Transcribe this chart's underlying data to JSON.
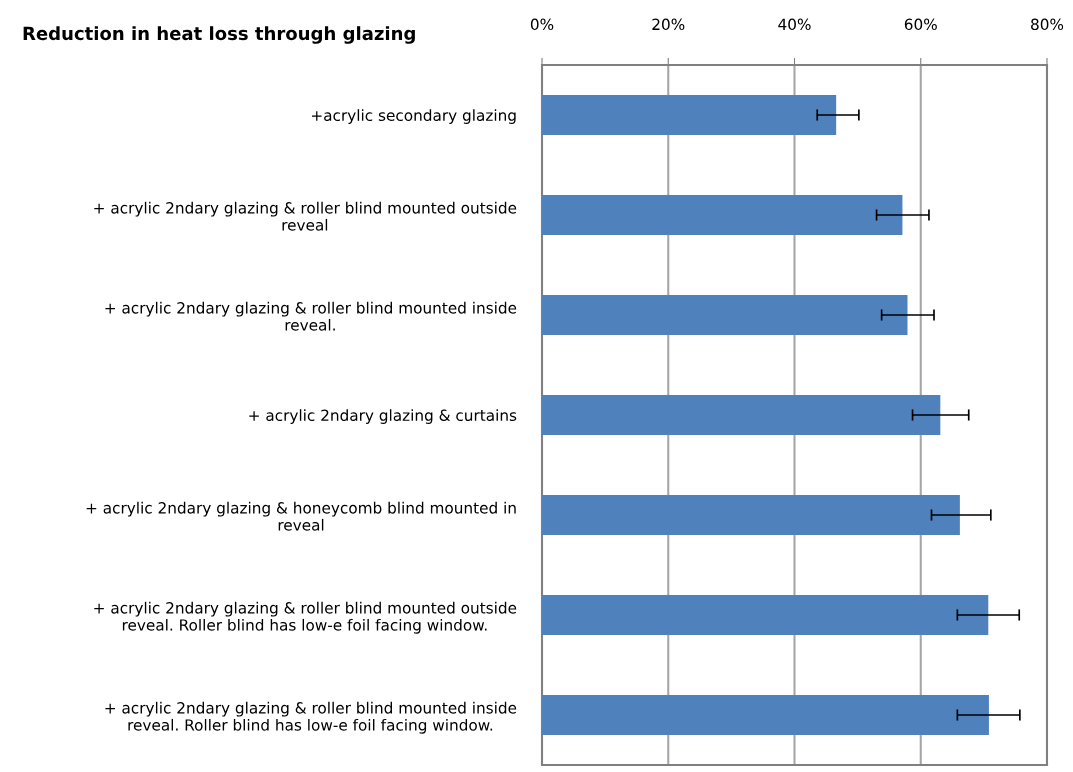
{
  "chart_data": {
    "type": "bar",
    "orientation": "horizontal",
    "title": "Reduction in heat loss through glazing",
    "categories": [
      "+acrylic secondary glazing",
      "+ acrylic 2ndary glazing & roller blind mounted outside\nreveal",
      "+ acrylic 2ndary glazing & roller blind mounted inside\nreveal.",
      "+ acrylic 2ndary glazing & curtains",
      "+ acrylic 2ndary glazing & honeycomb blind mounted in\nreveal",
      "+ acrylic 2ndary glazing & roller blind mounted outside\nreveal. Roller blind has low-e foil facing window.",
      "+ acrylic 2ndary glazing & roller blind mounted inside\nreveal. Roller blind has low-e foil facing window."
    ],
    "values": [
      0.466,
      0.571,
      0.579,
      0.631,
      0.662,
      0.707,
      0.708
    ],
    "errors": [
      [
        0.436,
        0.502
      ],
      [
        0.53,
        0.613
      ],
      [
        0.538,
        0.621
      ],
      [
        0.587,
        0.676
      ],
      [
        0.617,
        0.711
      ],
      [
        0.658,
        0.756
      ],
      [
        0.658,
        0.757
      ]
    ],
    "color": "#4f81bd",
    "xlim": [
      0,
      0.8
    ],
    "xticks": [
      {
        "value": 0,
        "label": "0%"
      },
      {
        "value": 0.2,
        "label": "20%"
      },
      {
        "value": 0.4,
        "label": "40%"
      },
      {
        "value": 0.6,
        "label": "60%"
      },
      {
        "value": 0.8,
        "label": "80%"
      }
    ],
    "grid": "x"
  }
}
